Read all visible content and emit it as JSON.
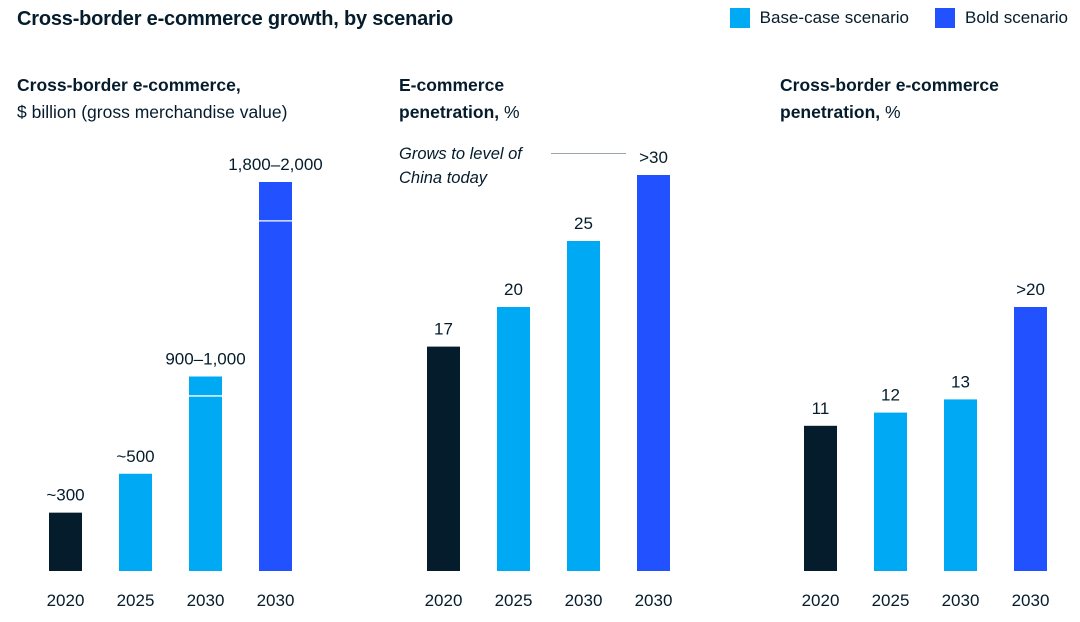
{
  "title": "Cross-border e-commerce growth, by scenario",
  "legend": [
    {
      "label": "Base-case scenario",
      "color": "#00a9f4"
    },
    {
      "label": "Bold scenario",
      "color": "#2251ff"
    }
  ],
  "colors": {
    "actual": "#051c2c",
    "base": "#00a9f4",
    "bold": "#2251ff"
  },
  "annotation": {
    "line1": "Grows to level of",
    "line2": "China today"
  },
  "chart_data": [
    {
      "type": "bar",
      "title": "Cross-border e-commerce,",
      "unit": "$ billion (gross merchandise value)",
      "categories": [
        "2020",
        "2025",
        "2030",
        "2030"
      ],
      "values": [
        300,
        500,
        1000,
        2000
      ],
      "range_low": [
        null,
        null,
        900,
        1800
      ],
      "labels": [
        "~300",
        "~500",
        "900–1,000",
        "1,800–2,000"
      ],
      "scenario": [
        "actual",
        "base",
        "base",
        "bold"
      ],
      "ylim": [
        0,
        2000
      ]
    },
    {
      "type": "bar",
      "title": "E-commerce",
      "title2": "penetration,",
      "unit": "%",
      "categories": [
        "2020",
        "2025",
        "2030",
        "2030"
      ],
      "values": [
        17,
        20,
        25,
        30
      ],
      "labels": [
        "17",
        "20",
        "25",
        ">30"
      ],
      "scenario": [
        "actual",
        "base",
        "base",
        "bold"
      ],
      "ylim": [
        0,
        30
      ]
    },
    {
      "type": "bar",
      "title": "Cross-border e-commerce",
      "title2": "penetration,",
      "unit": "%",
      "categories": [
        "2020",
        "2025",
        "2030",
        "2030"
      ],
      "values": [
        11,
        12,
        13,
        20
      ],
      "labels": [
        "11",
        "12",
        "13",
        ">20"
      ],
      "scenario": [
        "actual",
        "base",
        "base",
        "bold"
      ],
      "ylim": [
        0,
        20
      ]
    }
  ]
}
